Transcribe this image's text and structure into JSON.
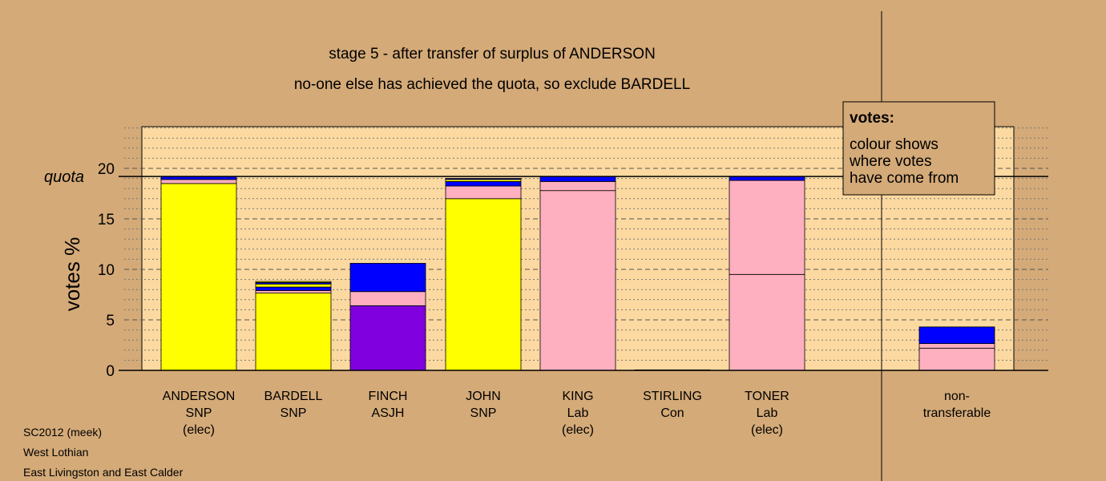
{
  "chart_data": {
    "type": "bar",
    "stacked": true,
    "title": "stage 5 - after transfer of surplus of ANDERSON",
    "subtitle": "no-one else has achieved the quota, so exclude BARDELL",
    "ylabel": "votes %",
    "ylim": [
      0,
      24
    ],
    "yticks": [
      0,
      5,
      10,
      15,
      20
    ],
    "quota": 19.2,
    "quota_label": "quota",
    "grid": "dotted minor, dashed major",
    "colors": {
      "yellow": "#ffff00",
      "pink": "#ffb0c0",
      "blue": "#0000ff",
      "purple": "#8000e0",
      "plot_bg": "#fcd9a0",
      "page_bg": "#d4aa78"
    },
    "candidates": [
      {
        "label": [
          "ANDERSON",
          "SNP",
          "(elec)"
        ],
        "segments": [
          {
            "color": "yellow",
            "value": 18.5
          },
          {
            "color": "pink",
            "value": 0.4
          },
          {
            "color": "blue",
            "value": 0.3
          }
        ]
      },
      {
        "label": [
          "BARDELL",
          "SNP"
        ],
        "segments": [
          {
            "color": "yellow",
            "value": 7.65
          },
          {
            "color": "pink",
            "value": 0.25
          },
          {
            "color": "blue",
            "value": 0.35
          },
          {
            "color": "yellow",
            "value": 0.3
          },
          {
            "color": "blue",
            "value": 0.15
          },
          {
            "color": "yellow",
            "value": 0.1
          }
        ]
      },
      {
        "label": [
          "FINCH",
          "ASJH"
        ],
        "segments": [
          {
            "color": "purple",
            "value": 6.4
          },
          {
            "color": "pink",
            "value": 1.4
          },
          {
            "color": "blue",
            "value": 2.8
          }
        ]
      },
      {
        "label": [
          "JOHN",
          "SNP"
        ],
        "segments": [
          {
            "color": "yellow",
            "value": 17.0
          },
          {
            "color": "pink",
            "value": 1.25
          },
          {
            "color": "blue",
            "value": 0.45
          },
          {
            "color": "yellow",
            "value": 0.2
          },
          {
            "color": "blue",
            "value": 0.1
          }
        ]
      },
      {
        "label": [
          "KING",
          "Lab",
          "(elec)"
        ],
        "segments": [
          {
            "color": "pink",
            "value": 17.8
          },
          {
            "color": "pink",
            "value": 0.9
          },
          {
            "color": "blue",
            "value": 0.5
          }
        ]
      },
      {
        "label": [
          "STIRLING",
          "Con"
        ],
        "segments": [
          {
            "color": "pink",
            "value": 0.05
          }
        ]
      },
      {
        "label": [
          "TONER",
          "Lab",
          "(elec)"
        ],
        "segments": [
          {
            "color": "pink",
            "value": 9.5
          },
          {
            "color": "pink",
            "value": 9.3
          },
          {
            "color": "blue",
            "value": 0.4
          }
        ]
      },
      {
        "label": [
          "non-",
          "transferable"
        ],
        "segments": [
          {
            "color": "pink",
            "value": 2.2
          },
          {
            "color": "pink",
            "value": 0.45
          },
          {
            "color": "blue",
            "value": 1.65
          }
        ]
      }
    ],
    "legend": {
      "heading": "votes:",
      "lines": [
        "colour shows",
        "where votes",
        "have come from"
      ]
    }
  },
  "footer": {
    "line1": "SC2012 (meek)",
    "line2": "West Lothian",
    "line3": "East Livingston and East Calder"
  }
}
